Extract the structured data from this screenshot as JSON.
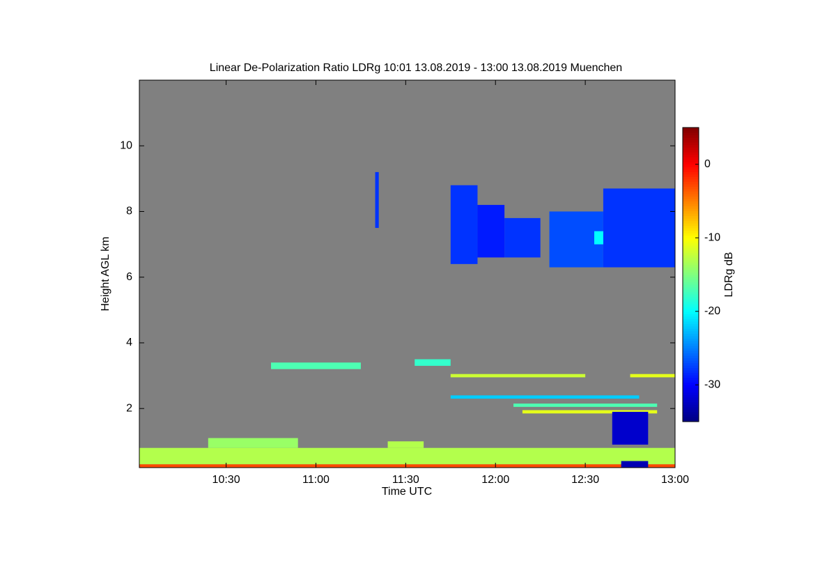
{
  "chart_data": {
    "type": "heatmap",
    "title": "Linear De-Polarization Ratio LDRg   10:01 13.08.2019 - 13:00 13.08.2019 Muenchen",
    "xlabel": "Time UTC",
    "ylabel": "Height AGL km",
    "colorbar_label": "LDRg dB",
    "background": "#808080",
    "colormap": "jet",
    "xlim": [
      10.0167,
      13.0
    ],
    "xticks": [
      {
        "value": 10.5,
        "label": "10:30"
      },
      {
        "value": 11.0,
        "label": "11:00"
      },
      {
        "value": 11.5,
        "label": "11:30"
      },
      {
        "value": 12.0,
        "label": "12:00"
      },
      {
        "value": 12.5,
        "label": "12:30"
      },
      {
        "value": 13.0,
        "label": "13:00"
      }
    ],
    "ylim": [
      0.2,
      12.0
    ],
    "yticks": [
      2,
      4,
      6,
      8,
      10
    ],
    "clim": [
      -35,
      5
    ],
    "cticks": [
      0,
      -10,
      -20,
      -30
    ],
    "cells": [
      {
        "t": [
          11.33,
          11.35
        ],
        "h": [
          7.5,
          9.2
        ],
        "value": -28
      },
      {
        "t": [
          11.75,
          11.9
        ],
        "h": [
          6.4,
          8.8
        ],
        "value": -28
      },
      {
        "t": [
          11.9,
          12.05
        ],
        "h": [
          6.6,
          8.2
        ],
        "value": -29
      },
      {
        "t": [
          12.05,
          12.25
        ],
        "h": [
          6.6,
          7.8
        ],
        "value": -28
      },
      {
        "t": [
          12.3,
          12.6
        ],
        "h": [
          6.3,
          8.0
        ],
        "value": -27
      },
      {
        "t": [
          12.6,
          13.0
        ],
        "h": [
          6.3,
          8.7
        ],
        "value": -28
      },
      {
        "t": [
          12.55,
          12.6
        ],
        "h": [
          7.0,
          7.4
        ],
        "value": -20
      },
      {
        "t": [
          10.0167,
          13.0
        ],
        "h": [
          0.3,
          0.8
        ],
        "value": -13
      },
      {
        "t": [
          10.0167,
          13.0
        ],
        "h": [
          0.2,
          0.3
        ],
        "value": -3
      },
      {
        "t": [
          10.4,
          10.9
        ],
        "h": [
          0.8,
          1.1
        ],
        "value": -14
      },
      {
        "t": [
          11.4,
          11.6
        ],
        "h": [
          0.8,
          1.0
        ],
        "value": -13
      },
      {
        "t": [
          10.75,
          11.25
        ],
        "h": [
          3.2,
          3.4
        ],
        "value": -17
      },
      {
        "t": [
          11.55,
          11.75
        ],
        "h": [
          3.3,
          3.5
        ],
        "value": -18
      },
      {
        "t": [
          11.75,
          12.5
        ],
        "h": [
          2.95,
          3.05
        ],
        "value": -12
      },
      {
        "t": [
          12.75,
          13.0
        ],
        "h": [
          2.95,
          3.05
        ],
        "value": -11
      },
      {
        "t": [
          11.75,
          12.8
        ],
        "h": [
          2.3,
          2.4
        ],
        "value": -22
      },
      {
        "t": [
          12.1,
          12.9
        ],
        "h": [
          2.05,
          2.15
        ],
        "value": -17
      },
      {
        "t": [
          12.15,
          12.9
        ],
        "h": [
          1.85,
          1.95
        ],
        "value": -11
      },
      {
        "t": [
          12.65,
          12.85
        ],
        "h": [
          0.9,
          1.9
        ],
        "value": -32
      },
      {
        "t": [
          12.7,
          12.85
        ],
        "h": [
          0.2,
          0.4
        ],
        "value": -33
      }
    ]
  }
}
